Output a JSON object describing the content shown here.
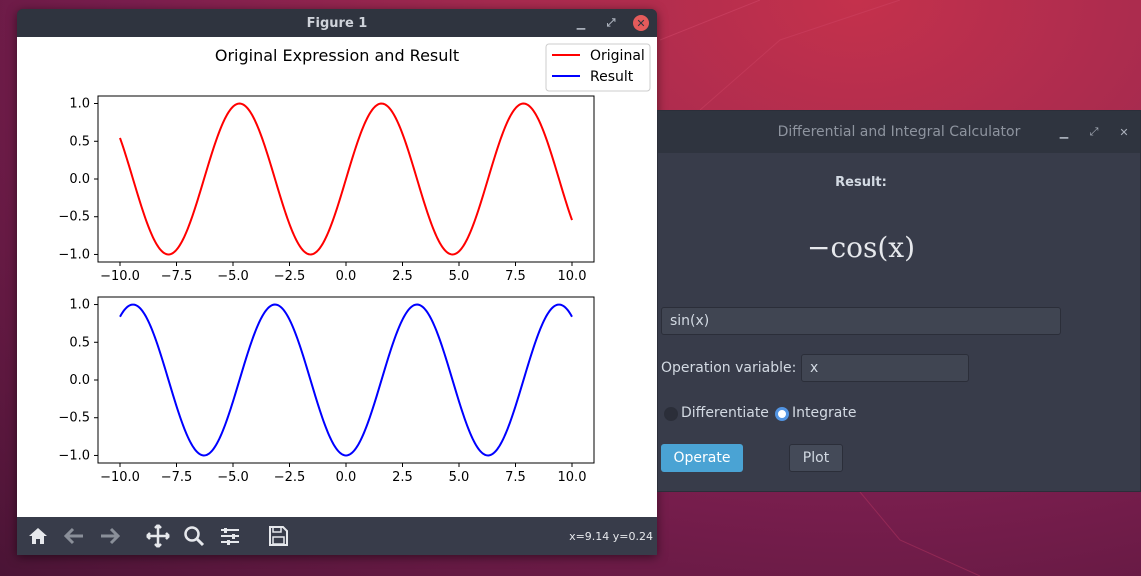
{
  "figure_window": {
    "title": "Figure 1",
    "coord_readout": "x=9.14 y=0.24",
    "toolbar_icons": [
      "home-icon",
      "back-arrow-icon",
      "forward-arrow-icon",
      "pan-icon",
      "zoom-icon",
      "configure-subplots-icon",
      "save-icon"
    ]
  },
  "chart_data": {
    "type": "line",
    "title": "Original Expression and Result",
    "legend": {
      "placement": "top-right",
      "entries": [
        {
          "name": "Original",
          "color": "#ff0000"
        },
        {
          "name": "Result",
          "color": "#0000ff"
        }
      ]
    },
    "subplots": [
      {
        "series_name": "Original",
        "expression": "sin(x)",
        "color": "#ff0000",
        "xlim": [
          -10,
          10
        ],
        "ylim": [
          -1.1,
          1.1
        ],
        "x_ticks": [
          "−10.0",
          "−7.5",
          "−5.0",
          "−2.5",
          "0.0",
          "2.5",
          "5.0",
          "7.5",
          "10.0"
        ],
        "y_ticks": [
          "1.0",
          "0.5",
          "0.0",
          "−0.5",
          "−1.0"
        ]
      },
      {
        "series_name": "Result",
        "expression": "-cos(x)",
        "color": "#0000ff",
        "xlim": [
          -10,
          10
        ],
        "ylim": [
          -1.1,
          1.1
        ],
        "x_ticks": [
          "−10.0",
          "−7.5",
          "−5.0",
          "−2.5",
          "0.0",
          "2.5",
          "5.0",
          "7.5",
          "10.0"
        ],
        "y_ticks": [
          "1.0",
          "0.5",
          "0.0",
          "−0.5",
          "−1.0"
        ]
      }
    ]
  },
  "calculator": {
    "title": "Differential and Integral Calculator",
    "result_label": "Result:",
    "result_text": "−cos(x)",
    "expression_value": "sin(x)",
    "operation_variable_label": "Operation variable:",
    "operation_variable_value": "x",
    "radio_differentiate": "Differentiate",
    "radio_integrate": "Integrate",
    "selected_operation": "Integrate",
    "operate_button": "Operate",
    "plot_button": "Plot",
    "accent_color": "#5294e2",
    "operate_color": "#4aa3d4"
  }
}
